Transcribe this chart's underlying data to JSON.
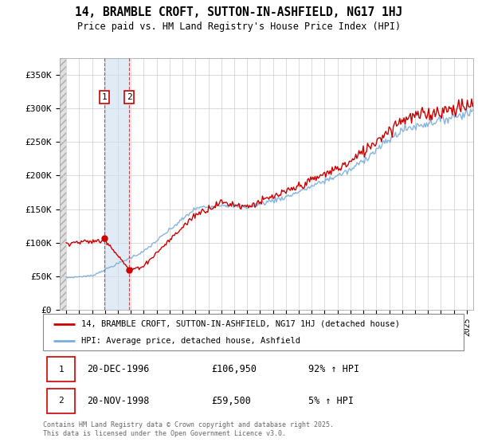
{
  "title": "14, BRAMBLE CROFT, SUTTON-IN-ASHFIELD, NG17 1HJ",
  "subtitle": "Price paid vs. HM Land Registry's House Price Index (HPI)",
  "legend_line1": "14, BRAMBLE CROFT, SUTTON-IN-ASHFIELD, NG17 1HJ (detached house)",
  "legend_line2": "HPI: Average price, detached house, Ashfield",
  "transaction1_date": "20-DEC-1996",
  "transaction1_price": "£106,950",
  "transaction1_hpi": "92% ↑ HPI",
  "transaction1_year": 1996.96,
  "transaction1_value": 106950,
  "transaction2_date": "20-NOV-1998",
  "transaction2_price": "£59,500",
  "transaction2_hpi": "5% ↑ HPI",
  "transaction2_year": 1998.88,
  "transaction2_value": 59500,
  "red_color": "#cc0000",
  "blue_color": "#7aadda",
  "background_color": "#ffffff",
  "copyright_text": "Contains HM Land Registry data © Crown copyright and database right 2025.\nThis data is licensed under the Open Government Licence v3.0.",
  "yticks": [
    0,
    50000,
    100000,
    150000,
    200000,
    250000,
    300000,
    350000
  ],
  "ylabels": [
    "£0",
    "£50K",
    "£100K",
    "£150K",
    "£200K",
    "£250K",
    "£300K",
    "£350K"
  ],
  "ylim": [
    0,
    375000
  ],
  "xlim_start": 1993.5,
  "xlim_end": 2025.5
}
